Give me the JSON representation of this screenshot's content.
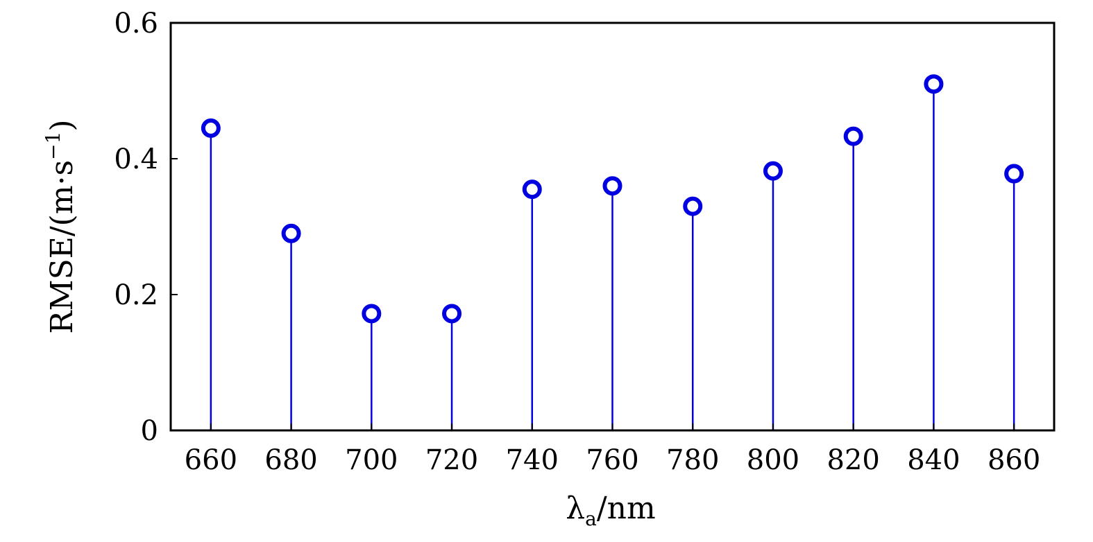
{
  "chart_data": {
    "type": "stem",
    "title": "",
    "xlabel": {
      "symbol": "λ",
      "subscript": "a",
      "unit": "/nm"
    },
    "ylabel": {
      "text": "RMSE/(m·s",
      "superscript": "−1",
      "close": ")"
    },
    "x": [
      660,
      680,
      700,
      720,
      740,
      760,
      780,
      800,
      820,
      840,
      860
    ],
    "y": [
      0.445,
      0.29,
      0.172,
      0.172,
      0.355,
      0.36,
      0.33,
      0.382,
      0.433,
      0.51,
      0.378
    ],
    "xlim": [
      650,
      870
    ],
    "ylim": [
      0,
      0.6
    ],
    "xticks": [
      660,
      680,
      700,
      720,
      740,
      760,
      780,
      800,
      820,
      840,
      860
    ],
    "yticks": [
      0,
      0.2,
      0.4,
      0.6
    ],
    "ytick_labels": [
      "0",
      "0.2",
      "0.4",
      "0.6"
    ],
    "grid": false,
    "marker": "open-circle",
    "color": "#0000e0"
  }
}
